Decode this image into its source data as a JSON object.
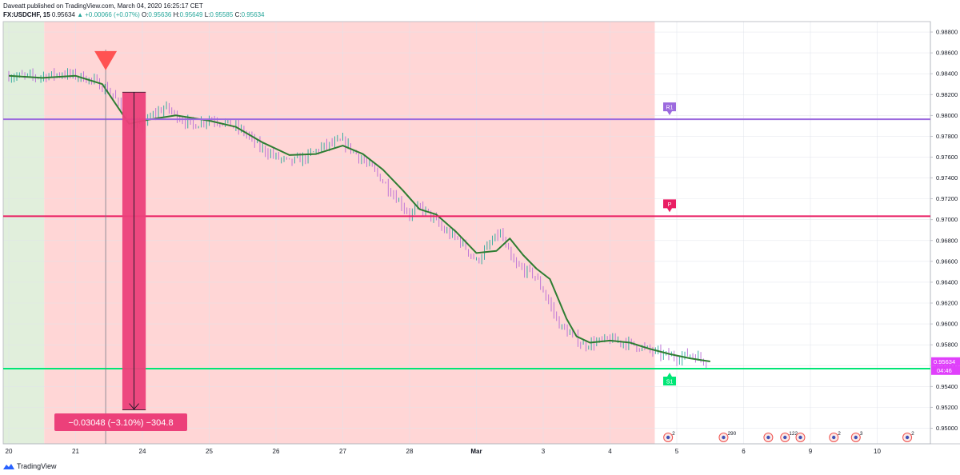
{
  "header": {
    "publisher_line": "Daveatt published on TradingView.com, March 04, 2020 16:25:17 CET",
    "symbol": "FX:USDCHF, 15",
    "last": "0.95634",
    "change": "+0.00066 (+0.07%)",
    "open_label": "O:",
    "open": "0.95636",
    "high_label": "H:",
    "high": "0.95649",
    "low_label": "L:",
    "low": "0.95585",
    "close_label": "C:",
    "close": "0.95634"
  },
  "footer": {
    "brand": "TradingView"
  },
  "colors": {
    "bg_green": "#e1efdc",
    "bg_red": "#ffd6d6",
    "bull": "#26a69a",
    "bear": "#b76bd6",
    "ma": "#2e7d32",
    "r1": "#9c6ade",
    "p": "#e91e63",
    "s1": "#00e676",
    "measure": "#ec407a",
    "signal": "#ff5252",
    "price_tag": "#e040fb"
  },
  "chart_data": {
    "type": "line",
    "symbol": "FX:USDCHF",
    "interval": "15",
    "ylim": [
      0.9485,
      0.989
    ],
    "x_axis_ticks": [
      "20",
      "21",
      "24",
      "25",
      "26",
      "27",
      "28",
      "Mar",
      "3",
      "4",
      "5",
      "6",
      "9",
      "10"
    ],
    "y_axis_ticks": [
      "0.98800",
      "0.98600",
      "0.98400",
      "0.98200",
      "0.98000",
      "0.97800",
      "0.97600",
      "0.97400",
      "0.97200",
      "0.97000",
      "0.96800",
      "0.96600",
      "0.96400",
      "0.96200",
      "0.96000",
      "0.95800",
      "0.95600",
      "0.95400",
      "0.95200",
      "0.95000"
    ],
    "series": [
      {
        "role": "price",
        "x_days": [
          0,
          0.4,
          0.8,
          1.1,
          1.3,
          1.55,
          1.8,
          2.0,
          2.15,
          2.35,
          2.5,
          2.75,
          3.0,
          3.25,
          3.5,
          3.75,
          4.0,
          4.2,
          4.45,
          4.7,
          5.0,
          5.25,
          5.5,
          5.75,
          6.0,
          6.15,
          6.3,
          6.5,
          6.75,
          7.0,
          7.15,
          7.35,
          7.45,
          7.55,
          7.7,
          7.85,
          8.0,
          8.25,
          8.5,
          8.6,
          8.75,
          9.0,
          9.25,
          9.5,
          9.75,
          10.0,
          10.2,
          10.35,
          10.45
        ],
        "y": [
          0.9838,
          0.9837,
          0.984,
          0.9837,
          0.9832,
          0.9821,
          0.9792,
          0.979,
          0.98,
          0.9808,
          0.98,
          0.979,
          0.9797,
          0.9793,
          0.9785,
          0.977,
          0.976,
          0.9755,
          0.976,
          0.977,
          0.9775,
          0.976,
          0.9745,
          0.9725,
          0.9705,
          0.9712,
          0.9705,
          0.969,
          0.968,
          0.966,
          0.9672,
          0.9688,
          0.9672,
          0.9658,
          0.9652,
          0.9648,
          0.9632,
          0.9598,
          0.9585,
          0.958,
          0.9582,
          0.9585,
          0.9582,
          0.9577,
          0.9571,
          0.9568,
          0.9571,
          0.9567,
          0.9563
        ]
      },
      {
        "role": "moving-average",
        "x_days": [
          0,
          0.5,
          1.0,
          1.4,
          1.8,
          2.1,
          2.5,
          3.0,
          3.4,
          3.8,
          4.2,
          4.6,
          5.0,
          5.3,
          5.6,
          5.9,
          6.15,
          6.4,
          6.7,
          7.0,
          7.3,
          7.5,
          7.7,
          7.9,
          8.1,
          8.35,
          8.5,
          8.7,
          9.0,
          9.3,
          9.6,
          9.9,
          10.2,
          10.4,
          10.5
        ],
        "y": [
          0.9838,
          0.9836,
          0.9838,
          0.983,
          0.9792,
          0.9796,
          0.98,
          0.9795,
          0.9789,
          0.9774,
          0.9762,
          0.9763,
          0.9771,
          0.9763,
          0.9748,
          0.9728,
          0.971,
          0.9705,
          0.9688,
          0.9668,
          0.967,
          0.9682,
          0.9666,
          0.9653,
          0.9643,
          0.9605,
          0.9588,
          0.9582,
          0.9584,
          0.9582,
          0.9576,
          0.9571,
          0.9567,
          0.9565,
          0.9564
        ]
      }
    ],
    "levels": [
      {
        "label": "R1",
        "value": 0.97963
      },
      {
        "label": "P",
        "value": 0.97033
      },
      {
        "label": "S1",
        "value": 0.95571
      }
    ],
    "sessions": [
      {
        "shade": "green",
        "x_days_start": -0.08,
        "x_days_end": 0.53
      },
      {
        "shade": "red",
        "x_days_start": 0.53,
        "x_days_end": 9.67
      }
    ],
    "signal_marker": {
      "type": "sell-arrow",
      "x_days": 1.45,
      "y": 0.9851
    },
    "measure": {
      "x_days_start": 1.7,
      "x_days_end": 2.05,
      "y_from": 0.98223,
      "y_to": 0.95175,
      "label": "−0.03048 (−3.10%) −304.8"
    },
    "last_price_tag": "0.95634",
    "time_tag": "04:46",
    "event_icons": [
      {
        "x_days": 9.87,
        "count": "2"
      },
      {
        "x_days": 10.7,
        "count": "290"
      },
      {
        "x_days": 11.37,
        "count": ""
      },
      {
        "x_days": 11.62,
        "count": "122"
      },
      {
        "x_days": 11.85,
        "count": ""
      },
      {
        "x_days": 12.35,
        "count": "2"
      },
      {
        "x_days": 12.68,
        "count": "3"
      },
      {
        "x_days": 13.45,
        "count": "2"
      }
    ]
  }
}
